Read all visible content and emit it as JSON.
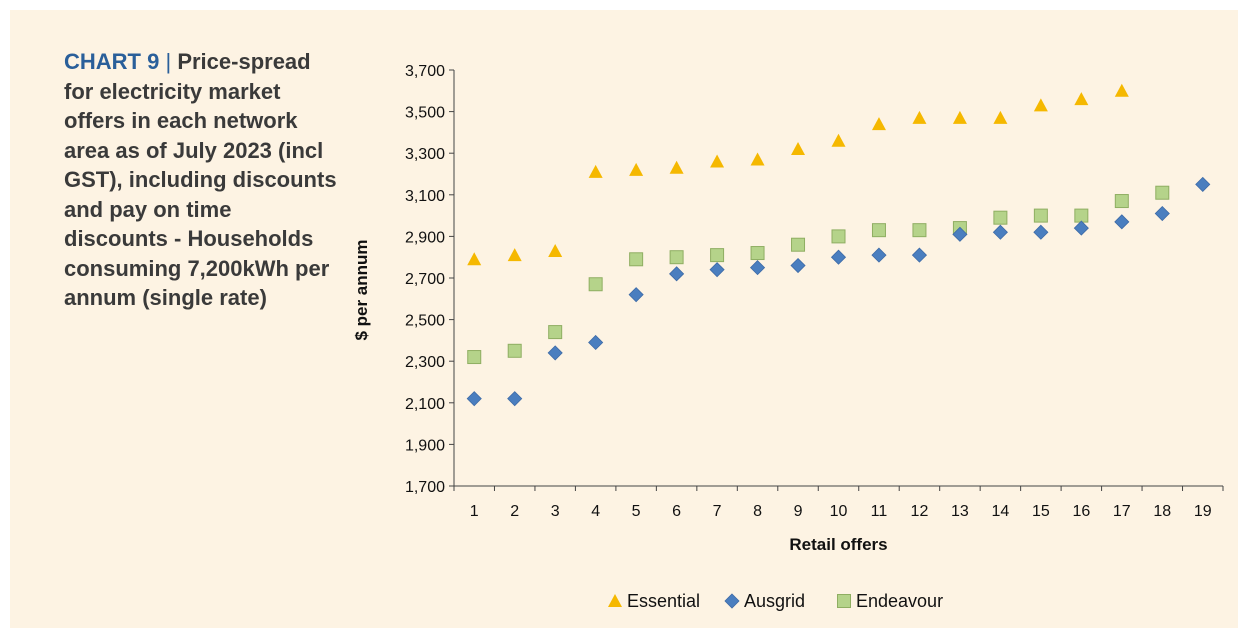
{
  "caption": {
    "chart_id": "CHART 9",
    "separator": "|",
    "text": "Price-spread for electricity market offers in each network area as of July 2023 (incl GST), including discounts and pay on time discounts - Households consuming 7,200kWh per annum (single rate)"
  },
  "chart_data": {
    "type": "scatter",
    "xlabel": "Retail offers",
    "ylabel": "$ per annum",
    "ylim": [
      1700,
      3700
    ],
    "ytick_step": 200,
    "x_categories": [
      "1",
      "2",
      "3",
      "4",
      "5",
      "6",
      "7",
      "8",
      "9",
      "10",
      "11",
      "12",
      "13",
      "14",
      "15",
      "16",
      "17",
      "18",
      "19"
    ],
    "legend_position": "bottom",
    "grid": false,
    "series": [
      {
        "name": "Essential",
        "marker": "triangle",
        "color": "#f5b800",
        "values": [
          2790,
          2810,
          2830,
          3210,
          3220,
          3230,
          3260,
          3270,
          3320,
          3360,
          3440,
          3470,
          3470,
          3470,
          3530,
          3560,
          3600
        ]
      },
      {
        "name": "Ausgrid",
        "marker": "diamond",
        "color": "#4a7ebf",
        "values": [
          2120,
          2120,
          2340,
          2390,
          2620,
          2720,
          2740,
          2750,
          2760,
          2800,
          2810,
          2810,
          2910,
          2920,
          2920,
          2940,
          2970,
          3010,
          3150
        ]
      },
      {
        "name": "Endeavour",
        "marker": "square",
        "color": "#b5d38a",
        "values": [
          2320,
          2350,
          2440,
          2670,
          2790,
          2800,
          2810,
          2820,
          2860,
          2900,
          2930,
          2930,
          2940,
          2990,
          3000,
          3000,
          3070,
          3110
        ]
      }
    ]
  }
}
